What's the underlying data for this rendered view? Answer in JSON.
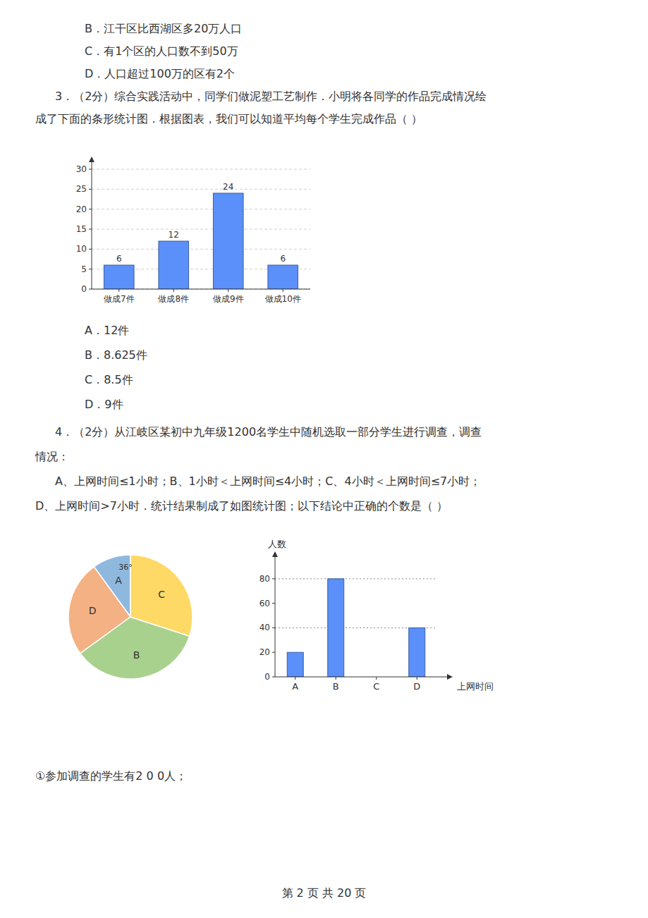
{
  "chart_data": [
    {
      "type": "bar",
      "categories": [
        "做成7件",
        "做成8件",
        "做成9件",
        "做成10件"
      ],
      "values": [
        6,
        12,
        24,
        6
      ],
      "color": "#5b8ff9",
      "ylim": [
        0,
        30
      ],
      "yticks": [
        0,
        5,
        10,
        15,
        20,
        25,
        30
      ],
      "grid": true,
      "data_labels": true,
      "annotations": [
        "B．江干区比西湖区多20万人口",
        "C．有1个区的人口数不到50万",
        "D．人口超过100万的区有2个",
        "3．（2分）综合实践活动中，同学们做泥塑工艺制作．小明将各同学的作品完成情况绘",
        "成了下面的条形统计图．根据图表，我们可以知道平均每个学生完成作品（      ）",
        "A．12件",
        "B．8.625件",
        "C．8.5件",
        "D．9件"
      ]
    },
    {
      "type": "pie",
      "categories": [
        "A",
        "D",
        "B",
        "C"
      ],
      "values": [
        36,
        90,
        126,
        108
      ],
      "colors": [
        "#8fb8de",
        "#f4b183",
        "#a9d18e",
        "#ffd966"
      ],
      "annotations": [
        "36°"
      ]
    },
    {
      "type": "bar",
      "categories": [
        "A",
        "B",
        "C",
        "D"
      ],
      "values": [
        20,
        80,
        0,
        40
      ],
      "color": "#5b8ff9",
      "xlabel": "上网时间",
      "ylabel": "人数",
      "ylim": [
        0,
        92
      ],
      "yticks": [
        0,
        20,
        40,
        60,
        80
      ],
      "grid": false,
      "ref_lines": [
        40,
        80
      ],
      "annotations": [
        "4．（2分）从江岐区某初中九年级1200名学生中随机选取一部分学生进行调查，调查",
        "情况：",
        "A、上网时间≤1小时；B、1小时＜上网时间≤4小时；C、4小时＜上网时间≤7小时；",
        "D、上网时间>7小时．统计结果制成了如图统计图；以下结论中正确的个数是（      ）",
        "①参加调查的学生有2 0 0人；",
        "第 2 页  共 20 页"
      ]
    }
  ]
}
